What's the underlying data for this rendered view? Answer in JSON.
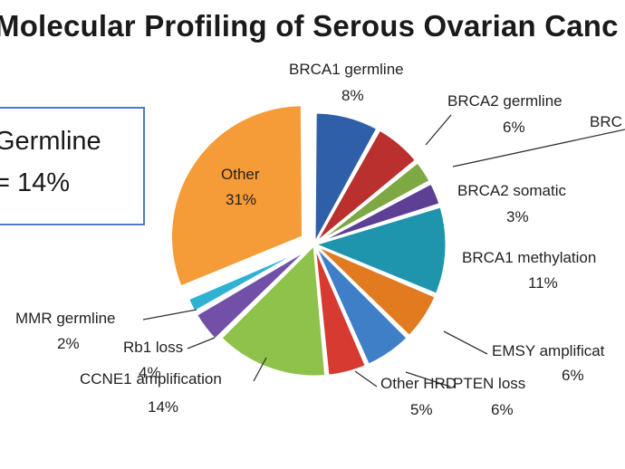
{
  "title": "Molecular Profiling of Serous Ovarian Canc",
  "germline_box": {
    "line1": "Germline",
    "line2": "= 14%"
  },
  "chart_data": {
    "type": "pie",
    "title": "Molecular Profiling of Serous Ovarian Canc",
    "slices": [
      {
        "label": "BRCA1 germline",
        "value": 8,
        "pct_label": "8%",
        "color": "#2f5fa8"
      },
      {
        "label": "BRCA2 germline",
        "value": 6,
        "pct_label": "6%",
        "color": "#b9302f"
      },
      {
        "label": "BRC",
        "value": 3,
        "pct_label": "",
        "color": "#7ea843"
      },
      {
        "label": "BRCA2 somatic",
        "value": 3,
        "pct_label": "3%",
        "color": "#5d3f94"
      },
      {
        "label": "BRCA1 methylation",
        "value": 11,
        "pct_label": "11%",
        "color": "#1f94ad"
      },
      {
        "label": "EMSY amplificat",
        "value": 6,
        "pct_label": "6%",
        "color": "#e27a20"
      },
      {
        "label": "PTEN loss",
        "value": 6,
        "pct_label": "6%",
        "color": "#3f7fc8"
      },
      {
        "label": "Other HRD",
        "value": 5,
        "pct_label": "5%",
        "color": "#d63a30"
      },
      {
        "label": "CCNE1 amplification",
        "value": 14,
        "pct_label": "14%",
        "color": "#8fc24a"
      },
      {
        "label": "Rb1 loss",
        "value": 4,
        "pct_label": "4%",
        "color": "#7250a8"
      },
      {
        "label": "MMR germline",
        "value": 2,
        "pct_label": "2%",
        "color": "#2fb2d2"
      },
      {
        "label": "Other",
        "value": 31,
        "pct_label": "31%",
        "color": "#f59b38"
      }
    ]
  }
}
